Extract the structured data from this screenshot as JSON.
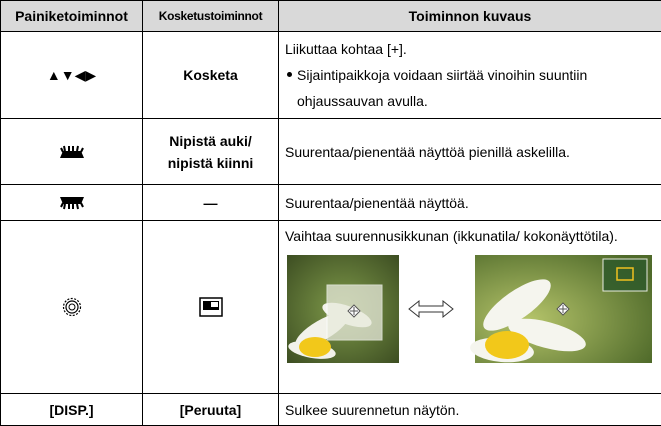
{
  "table": {
    "header": [
      "Painiketoiminnot",
      "Kosketustoiminnot",
      "Toiminnon kuvaus"
    ],
    "rows": [
      {
        "button": "▲▼◀▶",
        "touch": "Kosketa",
        "description": "Liikuttaa kohtaa [+].",
        "note": "Sijaintipaikkoja voidaan siirtää vinoihin suuntiin ohjaussauvan avulla."
      },
      {
        "touch": "Nipistä auki/ nipistä kiinni",
        "description": "Suurentaa/pienentää näyttöä pienillä askelilla."
      },
      {
        "touch": "—",
        "description": "Suurentaa/pienentää näyttöä."
      },
      {
        "description": "Vaihtaa suurennusikkunan (ikkunatila/ kokonäyttötila)."
      },
      {
        "button": "[DISP.]",
        "touch": "[Peruuta]",
        "description": "Sulkee suurennetun näytön."
      }
    ]
  }
}
